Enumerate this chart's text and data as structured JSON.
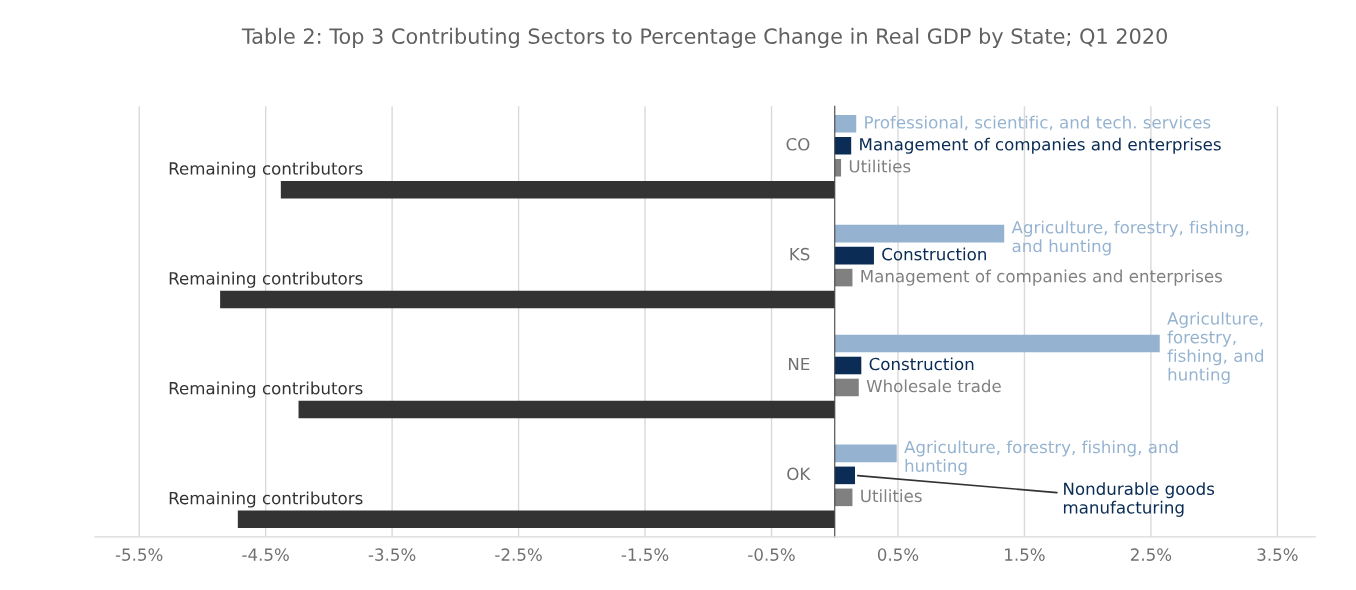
{
  "chart_data": {
    "type": "bar",
    "orientation": "horizontal",
    "title": "Table 2: Top 3 Contributing Sectors to Percentage Change in Real GDP by State; Q1 2020",
    "categories": [
      "CO",
      "KS",
      "NE",
      "OK"
    ],
    "series": [
      {
        "color": "#95b3d0",
        "values": [
          0.17,
          1.34,
          2.57,
          0.49
        ],
        "value_labels": [
          "Professional, scientific, and tech. services",
          "Agriculture, forestry, fishing,\nand hunting",
          "Agriculture,\nforestry,\nfishing, and\nhunting",
          "Agriculture, forestry, fishing, and\nhunting"
        ]
      },
      {
        "color": "#0b2d55",
        "values": [
          0.13,
          0.31,
          0.21,
          0.16
        ],
        "value_labels": [
          "Management of companies and enterprises",
          "Construction",
          "Construction",
          "Nondurable goods\nmanufacturing"
        ]
      },
      {
        "color": "#808080",
        "values": [
          0.05,
          0.14,
          0.19,
          0.14
        ],
        "value_labels": [
          "Utilities",
          "Management of companies and enterprises",
          "Wholesale trade",
          "Utilities"
        ]
      },
      {
        "color": "#333333",
        "values": [
          -4.38,
          -4.86,
          -4.24,
          -4.72
        ],
        "value_labels": [
          "Remaining contributors",
          "Remaining contributors",
          "Remaining contributors",
          "Remaining contributors"
        ]
      }
    ],
    "xlim": [
      -5.85,
      3.8
    ],
    "xticks": [
      {
        "value": -5.5,
        "label": "-5.5%"
      },
      {
        "value": -4.5,
        "label": "-4.5%"
      },
      {
        "value": -3.5,
        "label": "-3.5%"
      },
      {
        "value": -2.5,
        "label": "-2.5%"
      },
      {
        "value": -1.5,
        "label": "-1.5%"
      },
      {
        "value": -0.5,
        "label": "-0.5%"
      },
      {
        "value": 0.5,
        "label": "0.5%"
      },
      {
        "value": 1.5,
        "label": "1.5%"
      },
      {
        "value": 2.5,
        "label": "2.5%"
      },
      {
        "value": 3.5,
        "label": "3.5%"
      }
    ],
    "grid": "x",
    "legend": false
  }
}
